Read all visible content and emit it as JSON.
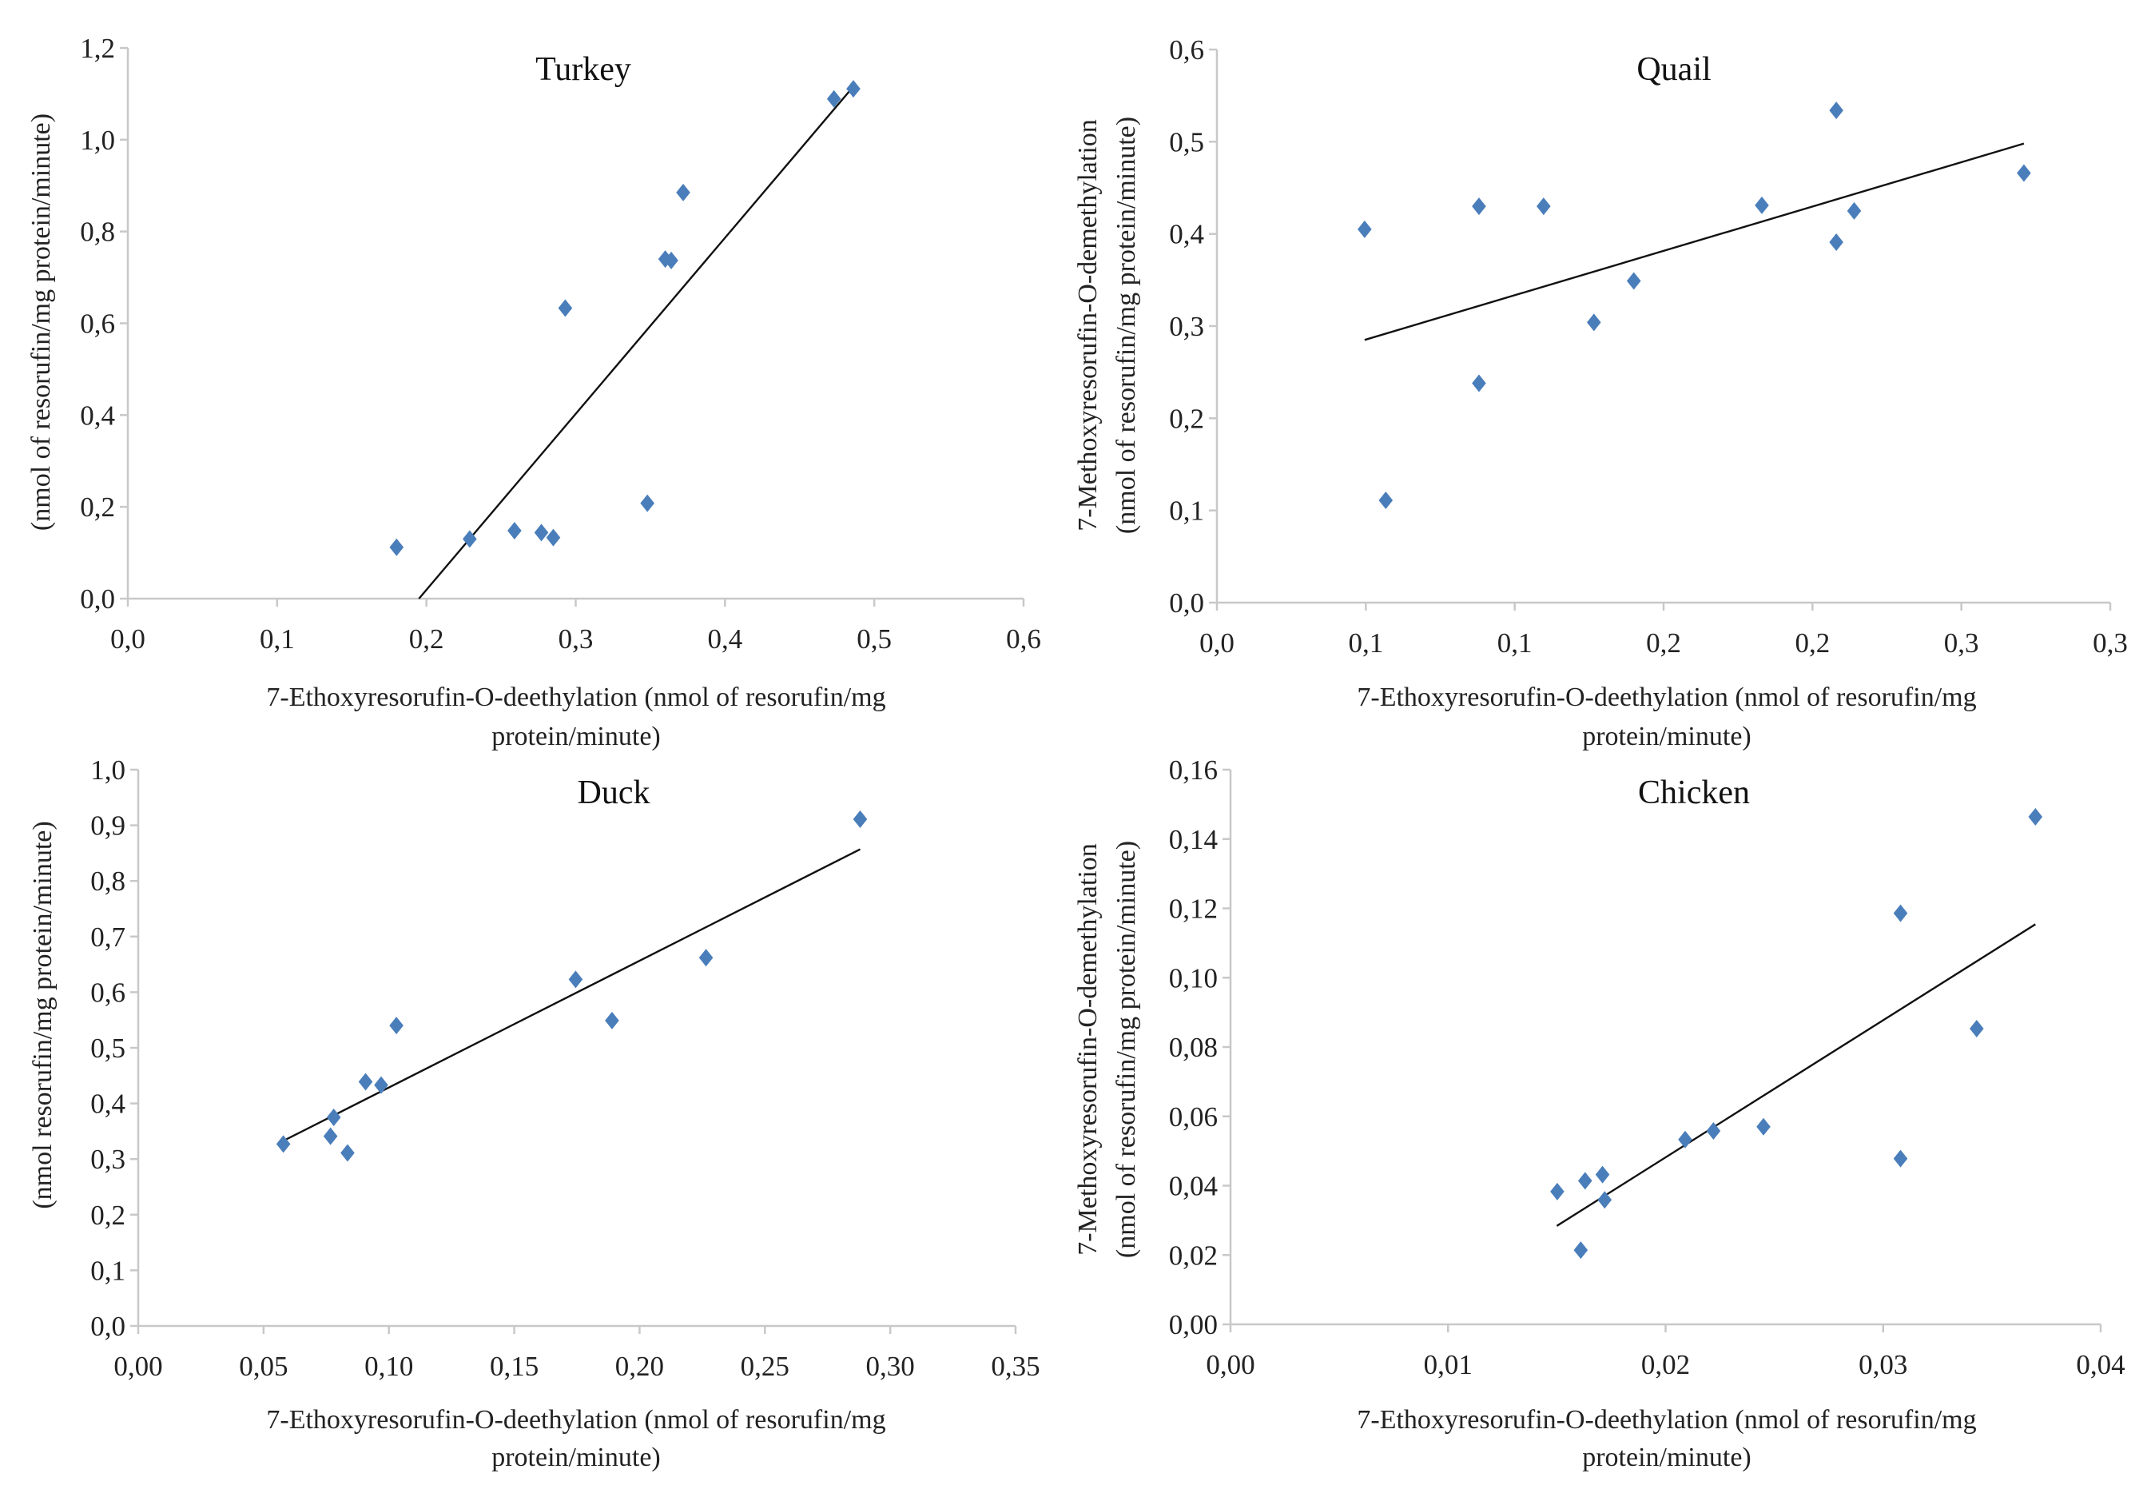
{
  "marker_color": "#4a7ebb",
  "trend_color": "#111111",
  "axis_color": "#c8c8c8",
  "chart_data": [
    {
      "type": "scatter",
      "title": "Turkey",
      "xlabel": [
        "7-Ethoxyresorufin-O-deethylation  (nmol of resorufin/mg",
        "protein/minute)"
      ],
      "ylabel": [
        "(nmol of resorufin/mg  protein/minute)"
      ],
      "xlim": [
        0,
        0.6
      ],
      "ylim": [
        0,
        1.2
      ],
      "xticks": [
        0,
        0.1,
        0.2,
        0.3,
        0.4,
        0.5,
        0.6
      ],
      "xtick_labels": [
        "0,0",
        "0,1",
        "0,2",
        "0,3",
        "0,4",
        "0,5",
        "0,6"
      ],
      "yticks": [
        0,
        0.2,
        0.4,
        0.6,
        0.8,
        1.0,
        1.2
      ],
      "ytick_labels": [
        "0,0",
        "0,2",
        "0,4",
        "0,6",
        "0,8",
        "1,0",
        "1,2"
      ],
      "grid": false,
      "points": [
        [
          0.18,
          0.112
        ],
        [
          0.229,
          0.13
        ],
        [
          0.259,
          0.148
        ],
        [
          0.277,
          0.144
        ],
        [
          0.285,
          0.133
        ],
        [
          0.293,
          0.633
        ],
        [
          0.348,
          0.208
        ],
        [
          0.36,
          0.74
        ],
        [
          0.364,
          0.737
        ],
        [
          0.372,
          0.885
        ],
        [
          0.473,
          1.089
        ],
        [
          0.486,
          1.111
        ]
      ],
      "trendline": [
        [
          0.195,
          0.0
        ],
        [
          0.486,
          1.116
        ]
      ]
    },
    {
      "type": "scatter",
      "title": "Quail",
      "xlabel": [
        "7-Ethoxyresorufin-O-deethylation  (nmol of resorufin/mg",
        "protein/minute)"
      ],
      "ylabel": [
        "7-Methoxyresorufin-O-demethylation",
        "(nmol of resorufin/mg  protein/minute)"
      ],
      "xlim": [
        0,
        0.3
      ],
      "ylim": [
        0,
        0.6
      ],
      "xticks": [
        0,
        0.05,
        0.1,
        0.15,
        0.2,
        0.25,
        0.3
      ],
      "xtick_labels": [
        "0,0",
        "0,1",
        "0,1",
        "0,2",
        "0,2",
        "0,3",
        "0,3"
      ],
      "yticks": [
        0,
        0.1,
        0.2,
        0.3,
        0.4,
        0.5,
        0.6
      ],
      "ytick_labels": [
        "0,0",
        "0,1",
        "0,2",
        "0,3",
        "0,4",
        "0,5",
        "0,6"
      ],
      "grid": false,
      "points": [
        [
          0.0496,
          0.405
        ],
        [
          0.0567,
          0.111
        ],
        [
          0.088,
          0.43
        ],
        [
          0.088,
          0.238
        ],
        [
          0.1097,
          0.43
        ],
        [
          0.1266,
          0.304
        ],
        [
          0.14,
          0.349
        ],
        [
          0.183,
          0.431
        ],
        [
          0.208,
          0.534
        ],
        [
          0.208,
          0.391
        ],
        [
          0.214,
          0.425
        ],
        [
          0.271,
          0.466
        ]
      ],
      "trendline": [
        [
          0.0496,
          0.285
        ],
        [
          0.271,
          0.498
        ]
      ]
    },
    {
      "type": "scatter",
      "title": "Duck",
      "xlabel": [
        "7-Ethoxyresorufin-O-deethylation  (nmol of resorufin/mg",
        "protein/minute)"
      ],
      "ylabel": [
        "(nmol resorufin/mg  protein/minute)"
      ],
      "xlim": [
        0,
        0.35
      ],
      "ylim": [
        0,
        1.0
      ],
      "xticks": [
        0,
        0.05,
        0.1,
        0.15,
        0.2,
        0.25,
        0.3,
        0.35
      ],
      "xtick_labels": [
        "0,00",
        "0,05",
        "0,10",
        "0,15",
        "0,20",
        "0,25",
        "0,30",
        "0,35"
      ],
      "yticks": [
        0,
        0.1,
        0.2,
        0.3,
        0.4,
        0.5,
        0.6,
        0.7,
        0.8,
        0.9,
        1.0
      ],
      "ytick_labels": [
        "0,0",
        "0,1",
        "0,2",
        "0,3",
        "0,4",
        "0,5",
        "0,6",
        "0,7",
        "0,8",
        "0,9",
        "1,0"
      ],
      "grid": false,
      "points": [
        [
          0.0579,
          0.327
        ],
        [
          0.0767,
          0.341
        ],
        [
          0.078,
          0.375
        ],
        [
          0.0835,
          0.311
        ],
        [
          0.0907,
          0.439
        ],
        [
          0.0969,
          0.433
        ],
        [
          0.103,
          0.54
        ],
        [
          0.1745,
          0.623
        ],
        [
          0.189,
          0.549
        ],
        [
          0.2265,
          0.662
        ],
        [
          0.288,
          0.911
        ]
      ],
      "trendline": [
        [
          0.058,
          0.333
        ],
        [
          0.288,
          0.857
        ]
      ]
    },
    {
      "type": "scatter",
      "title": "Chicken",
      "xlabel": [
        "7-Ethoxyresorufin-O-deethylation  (nmol of resorufin/mg",
        "protein/minute)"
      ],
      "ylabel": [
        "7-Methoxyresorufin-O-demethylation",
        "(nmol of resorufin/mg  protein/minute)"
      ],
      "xlim": [
        0,
        0.04
      ],
      "ylim": [
        0,
        0.16
      ],
      "xticks": [
        0,
        0.01,
        0.02,
        0.03,
        0.04
      ],
      "xtick_labels": [
        "0,00",
        "0,01",
        "0,02",
        "0,03",
        "0,04"
      ],
      "yticks": [
        0,
        0.02,
        0.04,
        0.06,
        0.08,
        0.1,
        0.12,
        0.14,
        0.16
      ],
      "ytick_labels": [
        "0,00",
        "0,02",
        "0,04",
        "0,06",
        "0,08",
        "0,10",
        "0,12",
        "0,14",
        "0,16"
      ],
      "grid": false,
      "points": [
        [
          0.01502,
          0.0383
        ],
        [
          0.0163,
          0.0414
        ],
        [
          0.0171,
          0.0432
        ],
        [
          0.0172,
          0.0359
        ],
        [
          0.0161,
          0.0214
        ],
        [
          0.0209,
          0.0533
        ],
        [
          0.0222,
          0.0558
        ],
        [
          0.0245,
          0.057
        ],
        [
          0.0308,
          0.1186
        ],
        [
          0.0308,
          0.0478
        ],
        [
          0.0343,
          0.0853
        ],
        [
          0.037,
          0.1464
        ]
      ],
      "trendline": [
        [
          0.015,
          0.0284
        ],
        [
          0.037,
          0.1154
        ]
      ]
    }
  ]
}
